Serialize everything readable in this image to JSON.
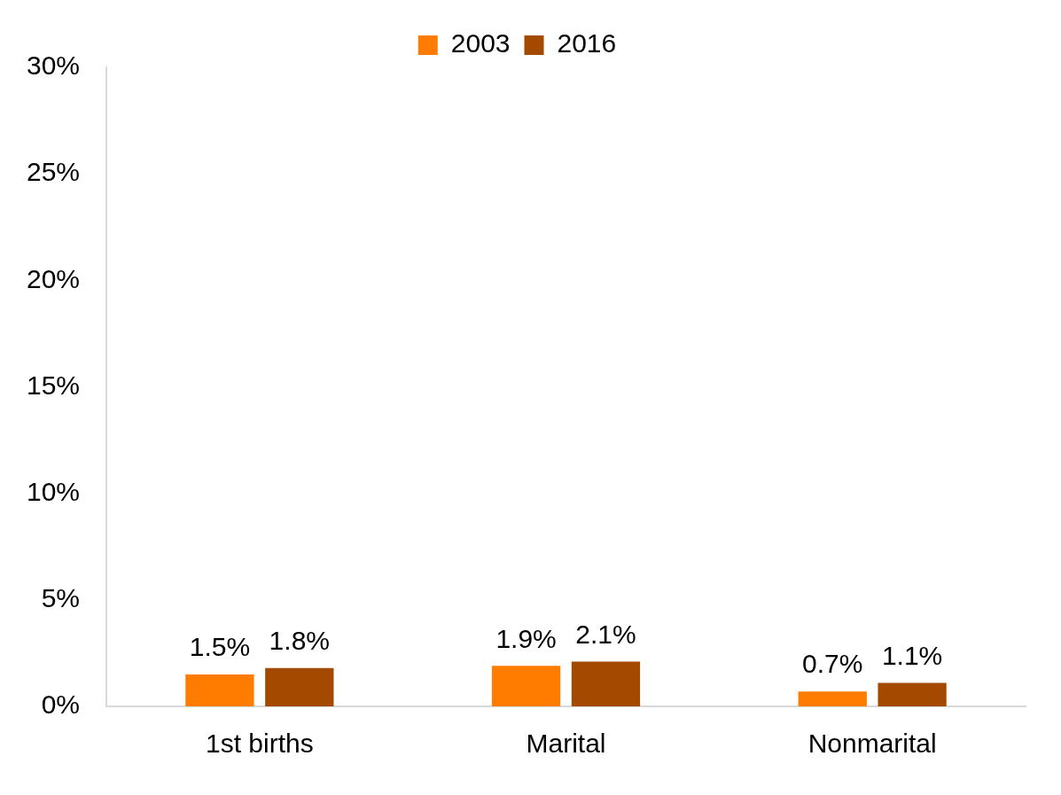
{
  "chart_data": {
    "type": "bar",
    "categories": [
      "1st births",
      "Marital",
      "Nonmarital"
    ],
    "series": [
      {
        "name": "2003",
        "color": "#ff7c00",
        "values": [
          1.5,
          1.9,
          0.7
        ],
        "value_labels": [
          "1.5%",
          "1.9%",
          "0.7%"
        ]
      },
      {
        "name": "2016",
        "color": "#a34a00",
        "values": [
          1.8,
          2.1,
          1.1
        ],
        "value_labels": [
          "1.8%",
          "2.1%",
          "1.1%"
        ]
      }
    ],
    "ylim": [
      0,
      30
    ],
    "yticks": [
      {
        "value": 0,
        "label": "0%"
      },
      {
        "value": 5,
        "label": "5%"
      },
      {
        "value": 10,
        "label": "10%"
      },
      {
        "value": 15,
        "label": "15%"
      },
      {
        "value": 20,
        "label": "20%"
      },
      {
        "value": 25,
        "label": "25%"
      },
      {
        "value": 30,
        "label": "30%"
      }
    ],
    "grid": false,
    "legend": "top",
    "data_labels": true
  }
}
